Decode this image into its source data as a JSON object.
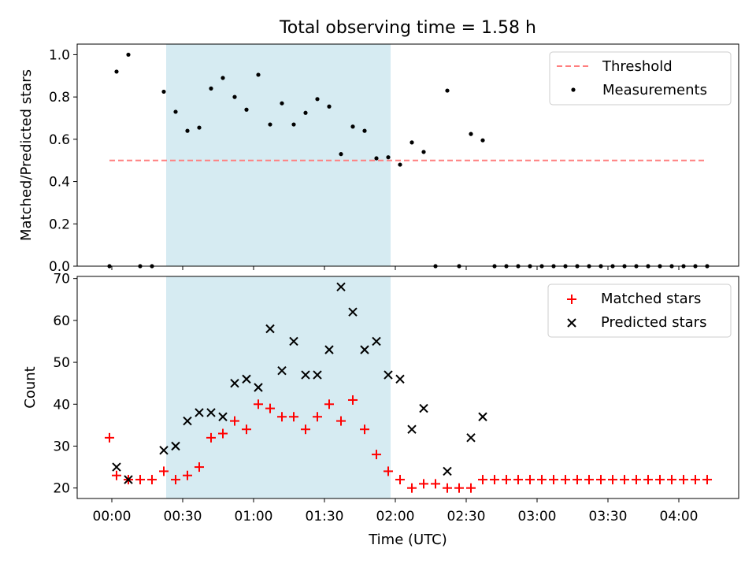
{
  "title": "Total observing time = 1.58 h",
  "colors": {
    "shade": "#add8e6",
    "threshold": "#ff7f7f",
    "matched": "#ff0000",
    "predicted": "#000000",
    "measure": "#000000"
  },
  "chart_data": [
    {
      "type": "scatter",
      "ylabel": "Matched/Predicted stars",
      "ylim": [
        0,
        1.05
      ],
      "yticks": [
        "0.0",
        "0.2",
        "0.4",
        "0.6",
        "0.8",
        "1.0"
      ],
      "shaded_span": [
        "00:23",
        "01:58"
      ],
      "legend": {
        "position": "upper right",
        "entries": [
          "Threshold",
          "Measurements"
        ]
      },
      "threshold": {
        "name": "Threshold",
        "value": 0.5,
        "x": [
          "-00:01",
          "04:12"
        ]
      },
      "series": [
        {
          "name": "Measurements",
          "x": [
            "-00:01",
            "00:02",
            "00:07",
            "00:12",
            "00:17",
            "00:22",
            "00:27",
            "00:32",
            "00:37",
            "00:42",
            "00:47",
            "00:52",
            "00:57",
            "01:02",
            "01:07",
            "01:12",
            "01:17",
            "01:22",
            "01:27",
            "01:32",
            "01:37",
            "01:42",
            "01:47",
            "01:52",
            "01:57",
            "02:02",
            "02:07",
            "02:12",
            "02:17",
            "02:22",
            "02:27",
            "02:32",
            "02:37",
            "02:42",
            "02:47",
            "02:52",
            "02:57",
            "03:02",
            "03:07",
            "03:12",
            "03:17",
            "03:22",
            "03:27",
            "03:32",
            "03:37",
            "03:42",
            "03:47",
            "03:52",
            "03:57",
            "04:02",
            "04:07",
            "04:12"
          ],
          "y": [
            0,
            0.92,
            1.0,
            0,
            0,
            0.825,
            0.73,
            0.64,
            0.655,
            0.84,
            0.89,
            0.8,
            0.74,
            0.905,
            0.67,
            0.77,
            0.67,
            0.725,
            0.79,
            0.755,
            0.53,
            0.66,
            0.64,
            0.51,
            0.515,
            0.48,
            0.585,
            0.54,
            0,
            0.83,
            0,
            0.625,
            0.595,
            0,
            0,
            0,
            0,
            0,
            0,
            0,
            0,
            0,
            0,
            0,
            0,
            0,
            0,
            0,
            0,
            0,
            0,
            0
          ]
        }
      ]
    },
    {
      "type": "scatter",
      "xlabel": "Time (UTC)",
      "ylabel": "Count",
      "ylim": [
        17.5,
        70.5
      ],
      "yticks": [
        "20",
        "30",
        "40",
        "50",
        "60",
        "70"
      ],
      "xticks": [
        "00:00",
        "00:30",
        "01:00",
        "01:30",
        "02:00",
        "02:30",
        "03:00",
        "03:30",
        "04:00"
      ],
      "shaded_span": [
        "00:23",
        "01:58"
      ],
      "legend": {
        "position": "upper right",
        "entries": [
          "Matched stars",
          "Predicted stars"
        ]
      },
      "series": [
        {
          "name": "Matched stars",
          "x": [
            "-00:01",
            "00:02",
            "00:07",
            "00:12",
            "00:17",
            "00:22",
            "00:27",
            "00:32",
            "00:37",
            "00:42",
            "00:47",
            "00:52",
            "00:57",
            "01:02",
            "01:07",
            "01:12",
            "01:17",
            "01:22",
            "01:27",
            "01:32",
            "01:37",
            "01:42",
            "01:47",
            "01:52",
            "01:57",
            "02:02",
            "02:07",
            "02:12",
            "02:17",
            "02:22",
            "02:27",
            "02:32",
            "02:37",
            "02:42",
            "02:47",
            "02:52",
            "02:57",
            "03:02",
            "03:07",
            "03:12",
            "03:17",
            "03:22",
            "03:27",
            "03:32",
            "03:37",
            "03:42",
            "03:47",
            "03:52",
            "03:57",
            "04:02",
            "04:07",
            "04:12"
          ],
          "y": [
            32,
            23,
            22,
            22,
            22,
            24,
            22,
            23,
            25,
            32,
            33,
            36,
            34,
            40,
            39,
            37,
            37,
            34,
            37,
            40,
            36,
            41,
            34,
            28,
            24,
            22,
            20,
            21,
            21,
            20,
            20,
            20,
            22,
            22,
            22,
            22,
            22,
            22,
            22,
            22,
            22,
            22,
            22,
            22,
            22,
            22,
            22,
            22,
            22,
            22,
            22,
            22
          ]
        },
        {
          "name": "Predicted stars",
          "x": [
            "00:02",
            "00:07",
            "00:22",
            "00:27",
            "00:32",
            "00:37",
            "00:42",
            "00:47",
            "00:52",
            "00:57",
            "01:02",
            "01:07",
            "01:12",
            "01:17",
            "01:22",
            "01:27",
            "01:32",
            "01:37",
            "01:42",
            "01:47",
            "01:52",
            "01:57",
            "02:02",
            "02:07",
            "02:12",
            "02:22",
            "02:32",
            "02:37"
          ],
          "y": [
            25,
            22,
            29,
            30,
            36,
            38,
            38,
            37,
            45,
            46,
            44,
            58,
            48,
            55,
            47,
            47,
            53,
            68,
            62,
            53,
            55,
            47,
            46,
            34,
            39,
            24,
            32,
            37
          ]
        }
      ]
    }
  ]
}
